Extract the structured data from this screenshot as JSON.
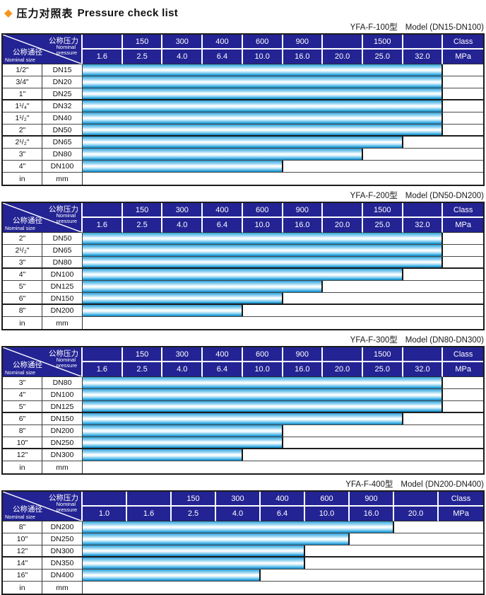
{
  "title": {
    "icon": "◆",
    "zh": "压力对照表",
    "en": "Pressure check list"
  },
  "corner": {
    "pressure_zh": "公称压力",
    "pressure_en1": "Nominal",
    "pressure_en2": "pressure",
    "size_zh": "公称通径",
    "size_en": "Nominal size"
  },
  "colors": {
    "header_navy": "#232394",
    "bar_cyan": "#2aa2db",
    "diamond_orange": "#f7941d",
    "border_black": "#1c1c1c"
  },
  "tables": [
    {
      "model": "YFA-F-100型",
      "range": "Model (DN15-DN100)",
      "class_row": [
        "",
        "150",
        "300",
        "400",
        "600",
        "900",
        "",
        "1500",
        "",
        "Class"
      ],
      "mpa_row": [
        "1.6",
        "2.5",
        "4.0",
        "6.4",
        "10.0",
        "16.0",
        "20.0",
        "25.0",
        "32.0",
        "MPa"
      ],
      "value_cols": 9,
      "rows": [
        {
          "size": "1/2\"",
          "dn": "DN15",
          "bar_cols": 9,
          "max_mpa": "32.0"
        },
        {
          "size": "3/4\"",
          "dn": "DN20",
          "bar_cols": 9,
          "max_mpa": "32.0"
        },
        {
          "size": "1\"",
          "dn": "DN25",
          "bar_cols": 9,
          "max_mpa": "32.0"
        },
        {
          "size": "1¹/₄\"",
          "dn": "DN32",
          "bar_cols": 9,
          "max_mpa": "32.0"
        },
        {
          "size": "1¹/₂\"",
          "dn": "DN40",
          "bar_cols": 9,
          "max_mpa": "32.0"
        },
        {
          "size": "2\"",
          "dn": "DN50",
          "bar_cols": 9,
          "max_mpa": "32.0"
        },
        {
          "size": "2¹/₂\"",
          "dn": "DN65",
          "bar_cols": 8,
          "max_mpa": "25.0"
        },
        {
          "size": "3\"",
          "dn": "DN80",
          "bar_cols": 7,
          "max_mpa": "20.0"
        },
        {
          "size": "4\"",
          "dn": "DN100",
          "bar_cols": 5,
          "max_mpa": "10.0"
        }
      ],
      "unit_row": {
        "size": "in",
        "dn": "mm"
      }
    },
    {
      "model": "YFA-F-200型",
      "range": "Model (DN50-DN200)",
      "class_row": [
        "",
        "150",
        "300",
        "400",
        "600",
        "900",
        "",
        "1500",
        "",
        "Class"
      ],
      "mpa_row": [
        "1.6",
        "2.5",
        "4.0",
        "6.4",
        "10.0",
        "16.0",
        "20.0",
        "25.0",
        "32.0",
        "MPa"
      ],
      "value_cols": 9,
      "rows": [
        {
          "size": "2\"",
          "dn": "DN50",
          "bar_cols": 9,
          "max_mpa": "32.0"
        },
        {
          "size": "2¹/₂\"",
          "dn": "DN65",
          "bar_cols": 9,
          "max_mpa": "32.0"
        },
        {
          "size": "3\"",
          "dn": "DN80",
          "bar_cols": 9,
          "max_mpa": "32.0"
        },
        {
          "size": "4\"",
          "dn": "DN100",
          "bar_cols": 8,
          "max_mpa": "25.0"
        },
        {
          "size": "5\"",
          "dn": "DN125",
          "bar_cols": 6,
          "max_mpa": "16.0"
        },
        {
          "size": "6\"",
          "dn": "DN150",
          "bar_cols": 5,
          "max_mpa": "10.0"
        },
        {
          "size": "8\"",
          "dn": "DN200",
          "bar_cols": 4,
          "max_mpa": "6.4"
        }
      ],
      "unit_row": {
        "size": "in",
        "dn": "mm"
      }
    },
    {
      "model": "YFA-F-300型",
      "range": "Model (DN80-DN300)",
      "class_row": [
        "",
        "150",
        "300",
        "400",
        "600",
        "900",
        "",
        "1500",
        "",
        "Class"
      ],
      "mpa_row": [
        "1.6",
        "2.5",
        "4.0",
        "6.4",
        "10.0",
        "16.0",
        "20.0",
        "25.0",
        "32.0",
        "MPa"
      ],
      "value_cols": 9,
      "rows": [
        {
          "size": "3\"",
          "dn": "DN80",
          "bar_cols": 9,
          "max_mpa": "32.0"
        },
        {
          "size": "4\"",
          "dn": "DN100",
          "bar_cols": 9,
          "max_mpa": "32.0"
        },
        {
          "size": "5\"",
          "dn": "DN125",
          "bar_cols": 9,
          "max_mpa": "32.0"
        },
        {
          "size": "6\"",
          "dn": "DN150",
          "bar_cols": 8,
          "max_mpa": "25.0"
        },
        {
          "size": "8\"",
          "dn": "DN200",
          "bar_cols": 5,
          "max_mpa": "10.0"
        },
        {
          "size": "10\"",
          "dn": "DN250",
          "bar_cols": 5,
          "max_mpa": "10.0"
        },
        {
          "size": "12\"",
          "dn": "DN300",
          "bar_cols": 4,
          "max_mpa": "6.4"
        }
      ],
      "unit_row": {
        "size": "in",
        "dn": "mm"
      }
    },
    {
      "model": "YFA-F-400型",
      "range": "Model (DN200-DN400)",
      "class_row": [
        "",
        "",
        "150",
        "300",
        "400",
        "600",
        "900",
        "",
        "Class"
      ],
      "mpa_row": [
        "1.0",
        "1.6",
        "2.5",
        "4.0",
        "6.4",
        "10.0",
        "16.0",
        "20.0",
        "MPa"
      ],
      "value_cols": 8,
      "rows": [
        {
          "size": "8\"",
          "dn": "DN200",
          "bar_cols": 7,
          "max_mpa": "16.0"
        },
        {
          "size": "10\"",
          "dn": "DN250",
          "bar_cols": 6,
          "max_mpa": "10.0"
        },
        {
          "size": "12\"",
          "dn": "DN300",
          "bar_cols": 5,
          "max_mpa": "6.4"
        },
        {
          "size": "14\"",
          "dn": "DN350",
          "bar_cols": 5,
          "max_mpa": "6.4"
        },
        {
          "size": "16\"",
          "dn": "DN400",
          "bar_cols": 4,
          "max_mpa": "4.0"
        }
      ],
      "unit_row": {
        "size": "in",
        "dn": "mm"
      }
    }
  ]
}
